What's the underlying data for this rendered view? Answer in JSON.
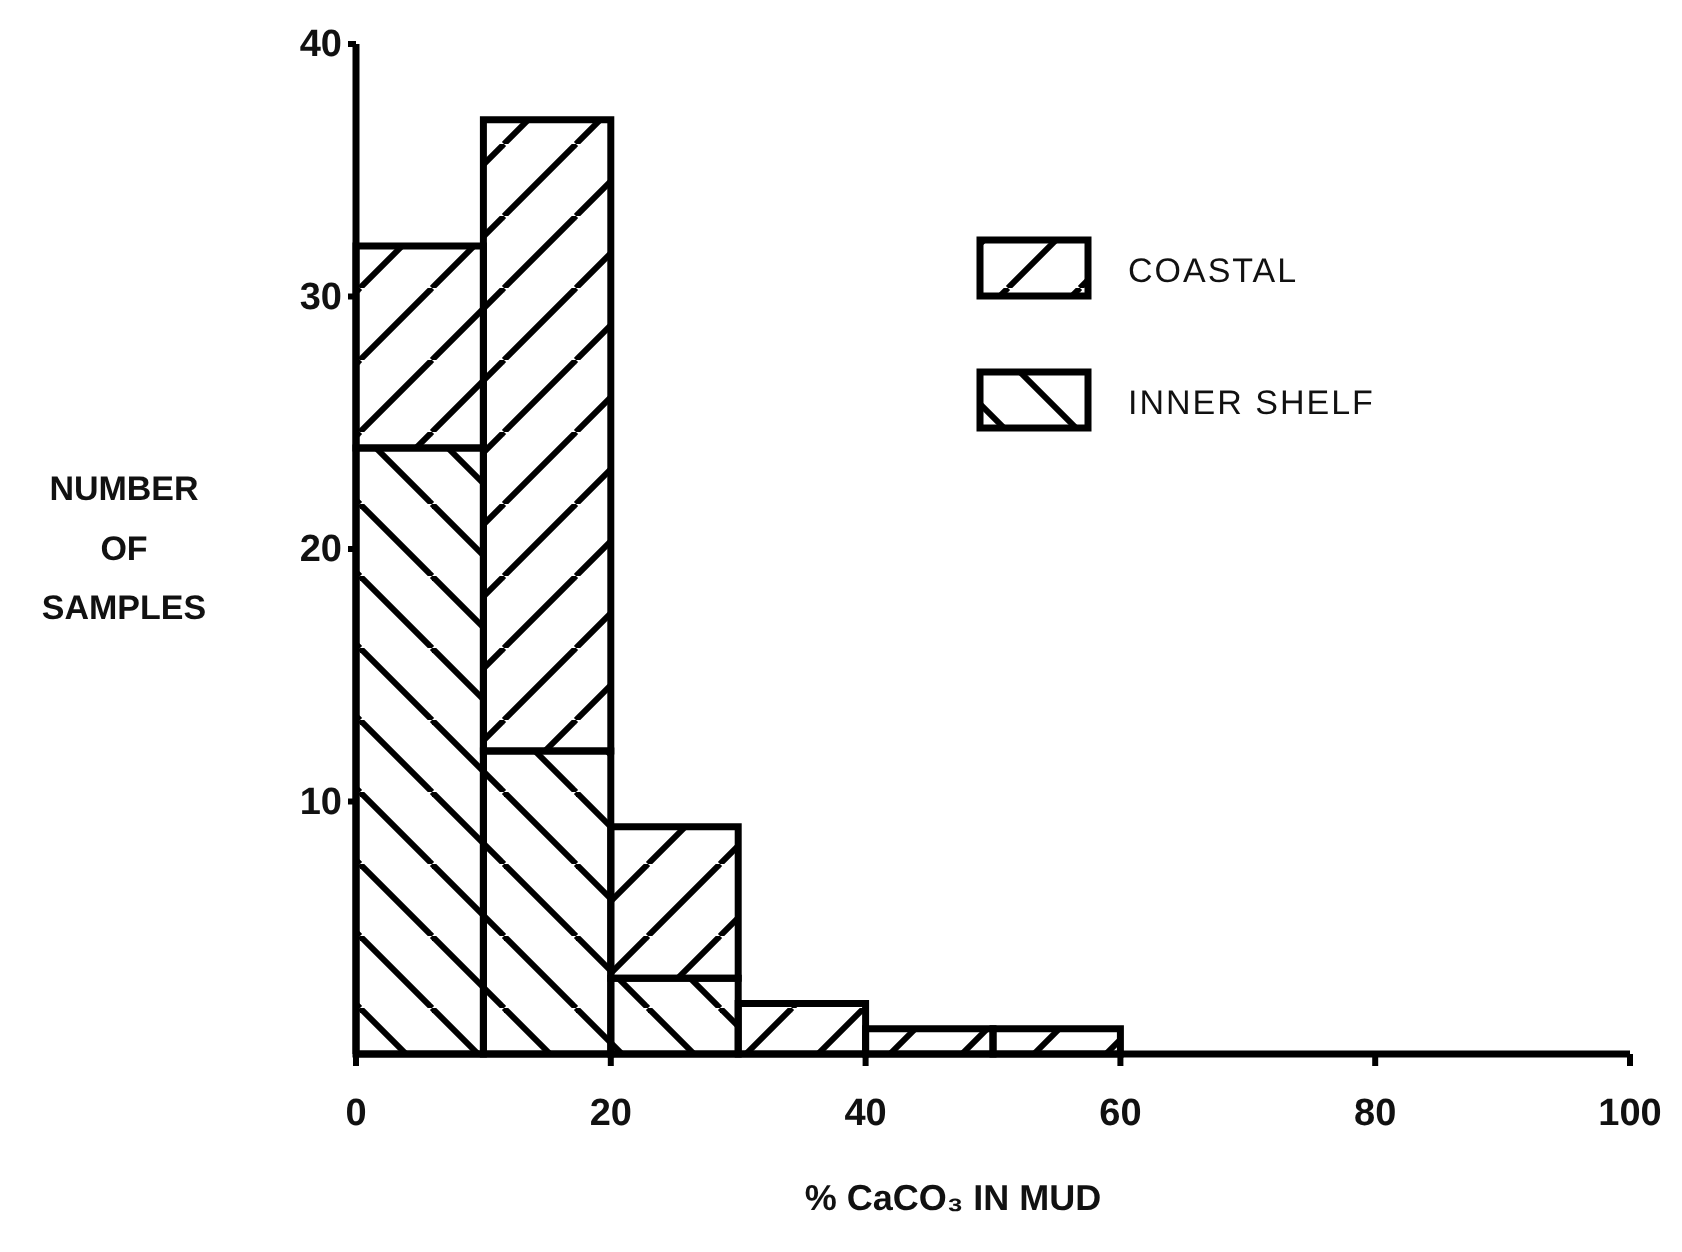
{
  "chart_data": {
    "type": "bar",
    "xlabel": "% CaCO₃ IN MUD",
    "ylabel": "NUMBER OF SAMPLES",
    "x": [
      5,
      15,
      25,
      35,
      45,
      55
    ],
    "stacked": true,
    "series": [
      {
        "name": "INNER SHELF",
        "color": "#000000",
        "values": [
          24,
          12,
          3,
          0,
          0,
          0
        ]
      },
      {
        "name": "COASTAL",
        "color": "#000000",
        "values": [
          8,
          25,
          6,
          2,
          1,
          1
        ]
      }
    ],
    "xlim": [
      0,
      100
    ],
    "xticks": [
      0,
      20,
      40,
      60,
      80,
      100
    ],
    "ylim": [
      0,
      40
    ],
    "yticks": [
      10,
      20,
      30,
      40
    ],
    "legend": "top right"
  }
}
